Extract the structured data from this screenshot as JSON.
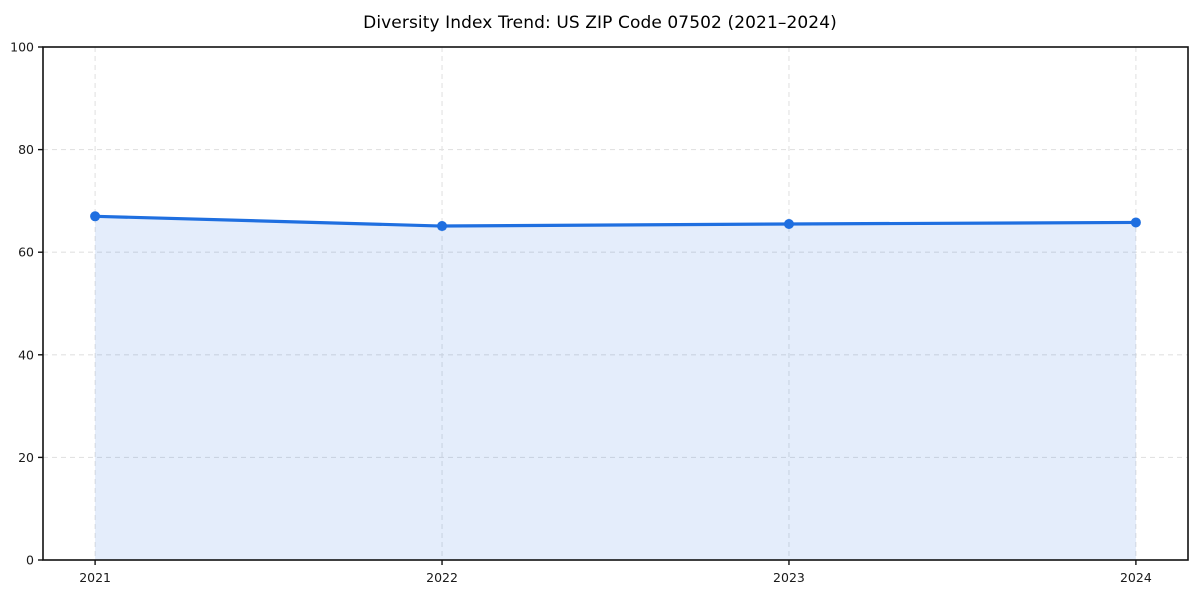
{
  "figure": {
    "background": "#ffffff"
  },
  "chart_data": {
    "type": "area",
    "title": "Diversity Index Trend: US ZIP Code 07502 (2021–2024)",
    "x": [
      "2021",
      "2022",
      "2023",
      "2024"
    ],
    "series": [
      {
        "name": "Diversity Index",
        "values": [
          67.0,
          65.1,
          65.5,
          65.8
        ]
      }
    ],
    "xlabel": "",
    "ylabel": "",
    "ylim": [
      0,
      100
    ],
    "yticks": [
      0,
      20,
      40,
      60,
      80,
      100
    ],
    "grid": true,
    "grid_style": "dashed",
    "legend": "none",
    "line_color": "#1f6fe0",
    "marker_color": "#1f6fe0",
    "fill_opacity": 0.12,
    "grid_color": "#e2e2e2",
    "axis_color": "#111111"
  }
}
